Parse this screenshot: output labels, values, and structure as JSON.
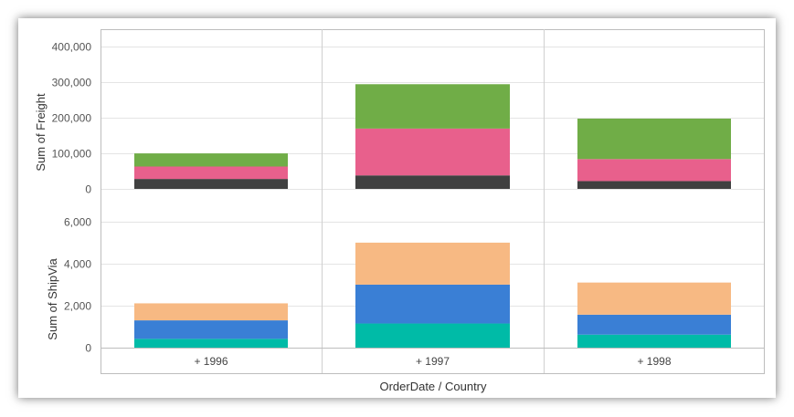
{
  "chart_data": {
    "type": "bar",
    "stacked": true,
    "categories": [
      "+ 1996",
      "+ 1997",
      "+ 1998"
    ],
    "xlabel": "OrderDate / Country",
    "panels": [
      {
        "ylabel": "Sum of Freight",
        "ylim": [
          0,
          450000
        ],
        "ticks": [
          0,
          100000,
          200000,
          300000,
          400000
        ],
        "tick_labels": [
          "0",
          "100,000",
          "200,000",
          "300,000",
          "400,000"
        ],
        "series": [
          {
            "values": [
              28000,
              38000,
              22000
            ],
            "color": "#404040"
          },
          {
            "values": [
              35000,
              132000,
              62000
            ],
            "color": "#e8608c"
          },
          {
            "values": [
              37000,
              125000,
              114000
            ],
            "color": "#70ad47"
          }
        ]
      },
      {
        "ylabel": "Sum of ShipVia",
        "ylim": [
          0,
          6300
        ],
        "ticks": [
          0,
          2000,
          4000,
          6000
        ],
        "tick_labels": [
          "0",
          "2,000",
          "4,000",
          "6,000"
        ],
        "series": [
          {
            "values": [
              420,
              1150,
              620
            ],
            "color": "#00bba7"
          },
          {
            "values": [
              880,
              1850,
              950
            ],
            "color": "#3a7fd5"
          },
          {
            "values": [
              810,
              2000,
              1530
            ],
            "color": "#f7b983"
          }
        ]
      }
    ],
    "grid": true
  }
}
